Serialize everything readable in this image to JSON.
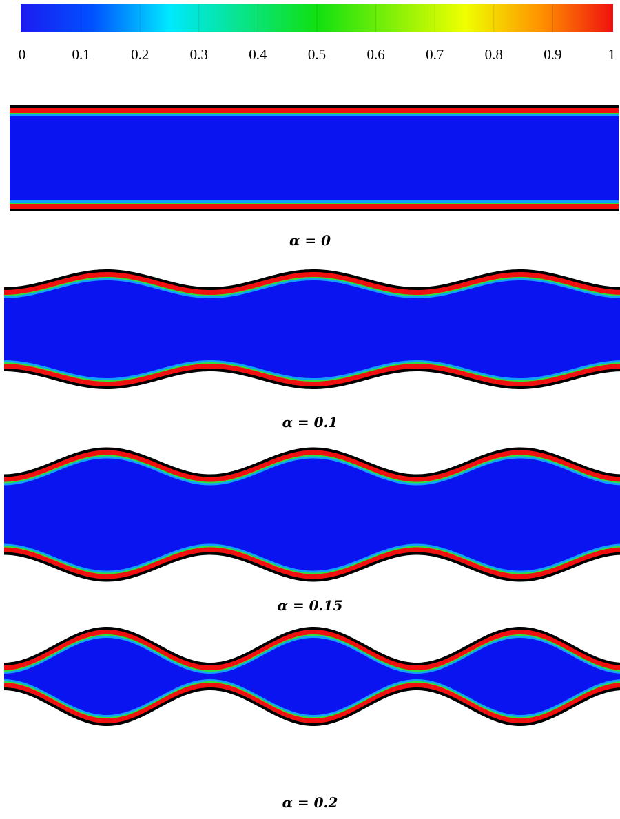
{
  "colorbar": {
    "lim": [
      0,
      1
    ],
    "ticks": [
      0,
      0.1,
      0.2,
      0.3,
      0.4,
      0.5,
      0.6,
      0.7,
      0.8,
      0.9,
      1
    ]
  },
  "panels": [
    {
      "alpha": 0,
      "label": "α = 0"
    },
    {
      "alpha": 0.1,
      "label": "α = 0.1"
    },
    {
      "alpha": 0.15,
      "label": "α = 0.15"
    },
    {
      "alpha": 0.2,
      "label": "α = 0.2"
    }
  ]
}
